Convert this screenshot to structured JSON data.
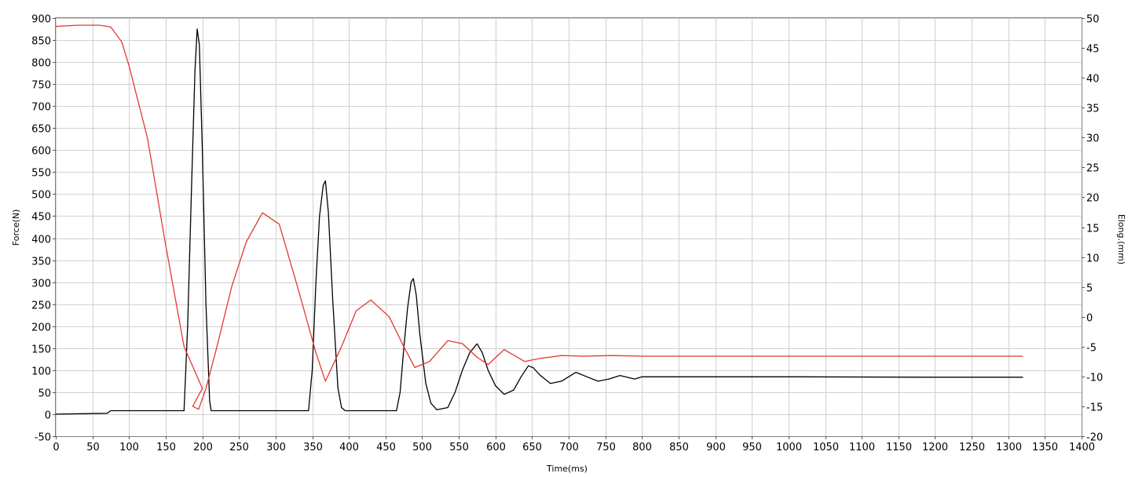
{
  "chart_data": {
    "type": "line",
    "xlabel": "Time(ms)",
    "ylabel": "Force(N)",
    "y2label": "Elong.(mm)",
    "xlim": [
      0,
      1400
    ],
    "ylim": [
      -50,
      900
    ],
    "y2lim": [
      -20,
      50
    ],
    "grid": true,
    "x_ticks": [
      "0",
      "50",
      "100",
      "150",
      "200",
      "250",
      "300",
      "350",
      "400",
      "450",
      "500",
      "550",
      "600",
      "650",
      "700",
      "750",
      "800",
      "850",
      "900",
      "950",
      "1000",
      "1050",
      "1100",
      "1150",
      "1200",
      "1250",
      "1300",
      "1350",
      "1400"
    ],
    "y_ticks": [
      "-50",
      "0",
      "50",
      "100",
      "150",
      "200",
      "250",
      "300",
      "350",
      "400",
      "450",
      "500",
      "550",
      "600",
      "650",
      "700",
      "750",
      "800",
      "850",
      "900"
    ],
    "y2_ticks": [
      "-20",
      "-15",
      "-10",
      "-5",
      "0",
      "5",
      "10",
      "15",
      "20",
      "25",
      "30",
      "35",
      "40",
      "45",
      "50"
    ],
    "series": [
      {
        "color": "#000000",
        "axis": "left",
        "x": [
          0,
          70,
          75,
          100,
          150,
          175,
          180,
          185,
          190,
          193,
          196,
          200,
          205,
          210,
          212,
          250,
          300,
          345,
          350,
          355,
          360,
          365,
          368,
          372,
          378,
          385,
          390,
          395,
          450,
          465,
          470,
          475,
          480,
          485,
          488,
          492,
          497,
          505,
          512,
          520,
          535,
          545,
          555,
          565,
          575,
          582,
          590,
          600,
          612,
          625,
          635,
          645,
          652,
          660,
          675,
          690,
          710,
          725,
          740,
          755,
          770,
          790,
          800,
          850,
          1000,
          1200,
          1320
        ],
        "y": [
          0,
          2,
          8,
          8,
          8,
          8,
          200,
          500,
          780,
          875,
          840,
          600,
          250,
          30,
          8,
          8,
          8,
          8,
          100,
          300,
          450,
          520,
          530,
          460,
          260,
          60,
          15,
          8,
          8,
          8,
          50,
          150,
          240,
          300,
          308,
          270,
          180,
          70,
          25,
          10,
          15,
          50,
          100,
          140,
          160,
          140,
          100,
          65,
          45,
          55,
          85,
          110,
          105,
          90,
          70,
          75,
          95,
          85,
          75,
          80,
          88,
          80,
          85,
          85,
          85,
          84,
          84
        ]
      },
      {
        "color": "#e03a30",
        "axis": "right",
        "x": [
          0,
          30,
          60,
          75,
          90,
          100,
          125,
          150,
          175,
          200,
          187,
          195,
          205,
          220,
          240,
          260,
          282,
          305,
          330,
          355,
          368,
          390,
          410,
          430,
          455,
          475,
          490,
          510,
          535,
          555,
          575,
          590,
          612,
          640,
          660,
          690,
          720,
          760,
          800,
          900,
          1100,
          1320
        ],
        "y": [
          48.6,
          48.8,
          48.8,
          48.5,
          46,
          42,
          30,
          12,
          -5,
          -12,
          -15,
          -15.5,
          -12,
          -5,
          5,
          12.5,
          17.4,
          15.5,
          5,
          -6,
          -10.8,
          -5,
          1,
          2.8,
          0,
          -5,
          -8.5,
          -7.5,
          -4,
          -4.5,
          -6.8,
          -8,
          -5.5,
          -7.5,
          -7,
          -6.5,
          -6.6,
          -6.5,
          -6.6,
          -6.6,
          -6.6,
          -6.6
        ]
      }
    ]
  }
}
